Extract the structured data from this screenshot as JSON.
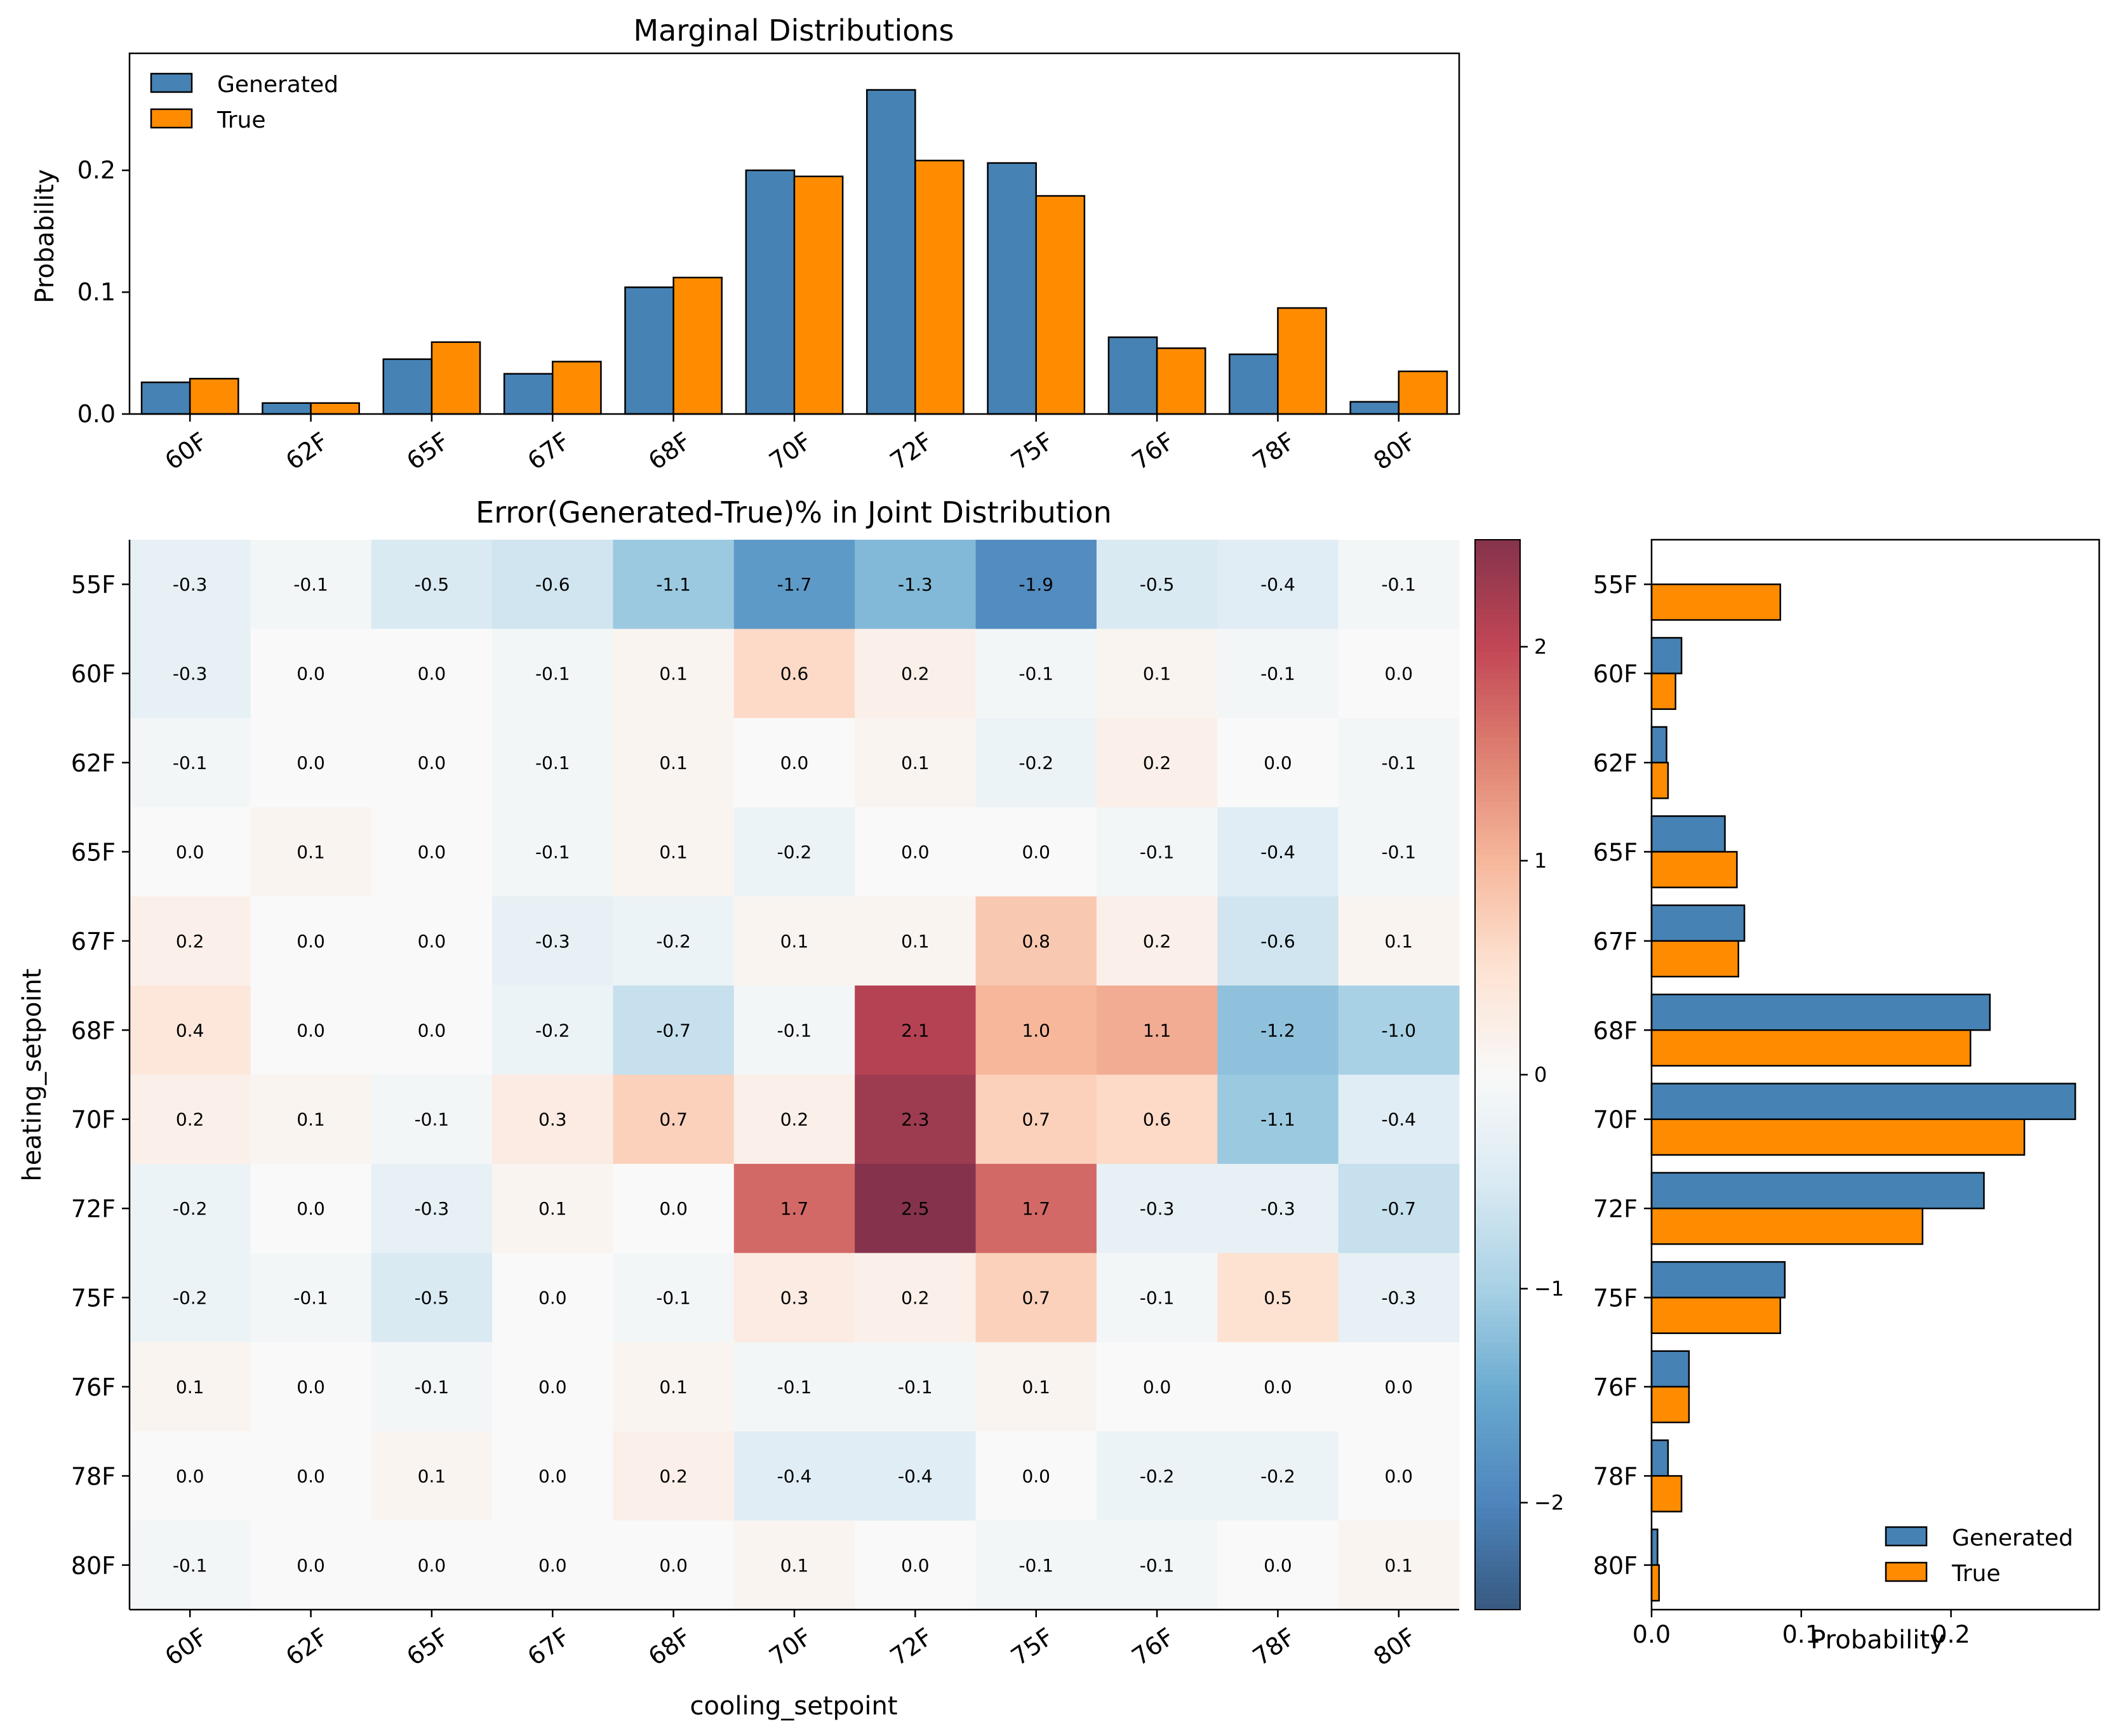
{
  "chart_data": [
    {
      "id": "top",
      "type": "bar",
      "title": "Marginal Distributions",
      "xlabel": "",
      "ylabel": "Probability",
      "categories": [
        "60F",
        "62F",
        "65F",
        "67F",
        "68F",
        "70F",
        "72F",
        "75F",
        "76F",
        "78F",
        "80F"
      ],
      "series": [
        {
          "name": "Generated",
          "color": "#4682b4",
          "values": [
            0.026,
            0.009,
            0.045,
            0.033,
            0.104,
            0.2,
            0.266,
            0.206,
            0.063,
            0.049,
            0.01
          ]
        },
        {
          "name": "True",
          "color": "#ff8c00",
          "values": [
            0.029,
            0.009,
            0.059,
            0.043,
            0.112,
            0.195,
            0.208,
            0.179,
            0.054,
            0.087,
            0.035
          ]
        }
      ],
      "ylim": [
        0,
        0.296
      ],
      "yticks": [
        0.0,
        0.1,
        0.2
      ],
      "ytick_labels": [
        "0.0",
        "0.1",
        "0.2"
      ],
      "legend": {
        "position": "upper-left",
        "entries": [
          "Generated",
          "True"
        ]
      }
    },
    {
      "id": "heatmap",
      "type": "heatmap",
      "title": "Error(Generated-True)% in Joint Distribution",
      "xlabel": "cooling_setpoint",
      "ylabel": "heating_setpoint",
      "x_categories": [
        "60F",
        "62F",
        "65F",
        "67F",
        "68F",
        "70F",
        "72F",
        "75F",
        "76F",
        "78F",
        "80F"
      ],
      "y_categories": [
        "55F",
        "60F",
        "62F",
        "65F",
        "67F",
        "68F",
        "70F",
        "72F",
        "75F",
        "76F",
        "78F",
        "80F"
      ],
      "values": [
        [
          -0.3,
          -0.1,
          -0.5,
          -0.6,
          -1.1,
          -1.7,
          -1.3,
          -1.9,
          -0.5,
          -0.4,
          -0.1
        ],
        [
          -0.3,
          0.0,
          0.0,
          -0.1,
          0.1,
          0.6,
          0.2,
          -0.1,
          0.1,
          -0.1,
          0.0
        ],
        [
          -0.1,
          0.0,
          0.0,
          -0.1,
          0.1,
          0.0,
          0.1,
          -0.2,
          0.2,
          0.0,
          -0.1
        ],
        [
          0.0,
          0.1,
          0.0,
          -0.1,
          0.1,
          -0.2,
          0.0,
          0.0,
          -0.1,
          -0.4,
          -0.1
        ],
        [
          0.2,
          0.0,
          0.0,
          -0.3,
          -0.2,
          0.1,
          0.1,
          0.8,
          0.2,
          -0.6,
          0.1
        ],
        [
          0.4,
          0.0,
          0.0,
          -0.2,
          -0.7,
          -0.1,
          2.1,
          1.0,
          1.1,
          -1.2,
          -1.0
        ],
        [
          0.2,
          0.1,
          -0.1,
          0.3,
          0.7,
          0.2,
          2.3,
          0.7,
          0.6,
          -1.1,
          -0.4
        ],
        [
          -0.2,
          0.0,
          -0.3,
          0.1,
          0.0,
          1.7,
          2.5,
          1.7,
          -0.3,
          -0.3,
          -0.7
        ],
        [
          -0.2,
          -0.1,
          -0.5,
          0.0,
          -0.1,
          0.3,
          0.2,
          0.7,
          -0.1,
          0.5,
          -0.3
        ],
        [
          0.1,
          0.0,
          -0.1,
          0.0,
          0.1,
          -0.1,
          -0.1,
          0.1,
          0.0,
          0.0,
          0.0
        ],
        [
          0.0,
          0.0,
          0.1,
          0.0,
          0.2,
          -0.4,
          -0.4,
          0.0,
          -0.2,
          -0.2,
          0.0
        ],
        [
          -0.1,
          0.0,
          0.0,
          0.0,
          0.0,
          0.1,
          0.0,
          -0.1,
          -0.1,
          0.0,
          0.1
        ]
      ],
      "colorscale": "RdBu_r",
      "vmin": -2.5,
      "vmax": 2.5,
      "colorbar_ticks": [
        2,
        1,
        0,
        -1,
        -2
      ],
      "colorbar_tick_labels": [
        "2",
        "1",
        "0",
        "−1",
        "−2"
      ]
    },
    {
      "id": "right",
      "type": "bar",
      "orientation": "horizontal",
      "xlabel": "Probability",
      "ylabel": "",
      "categories": [
        "55F",
        "60F",
        "62F",
        "65F",
        "67F",
        "68F",
        "70F",
        "72F",
        "75F",
        "76F",
        "78F",
        "80F"
      ],
      "series": [
        {
          "name": "Generated",
          "color": "#4682b4",
          "values": [
            0.0,
            0.02,
            0.01,
            0.049,
            0.062,
            0.226,
            0.283,
            0.222,
            0.089,
            0.025,
            0.011,
            0.004
          ]
        },
        {
          "name": "True",
          "color": "#ff8c00",
          "values": [
            0.086,
            0.016,
            0.011,
            0.057,
            0.058,
            0.213,
            0.249,
            0.181,
            0.086,
            0.025,
            0.02,
            0.005
          ]
        }
      ],
      "xlim": [
        0,
        0.299
      ],
      "xticks": [
        0.0,
        0.1,
        0.2
      ],
      "xtick_labels": [
        "0.0",
        "0.1",
        "0.2"
      ],
      "legend": {
        "position": "lower-right",
        "entries": [
          "Generated",
          "True"
        ]
      }
    }
  ]
}
